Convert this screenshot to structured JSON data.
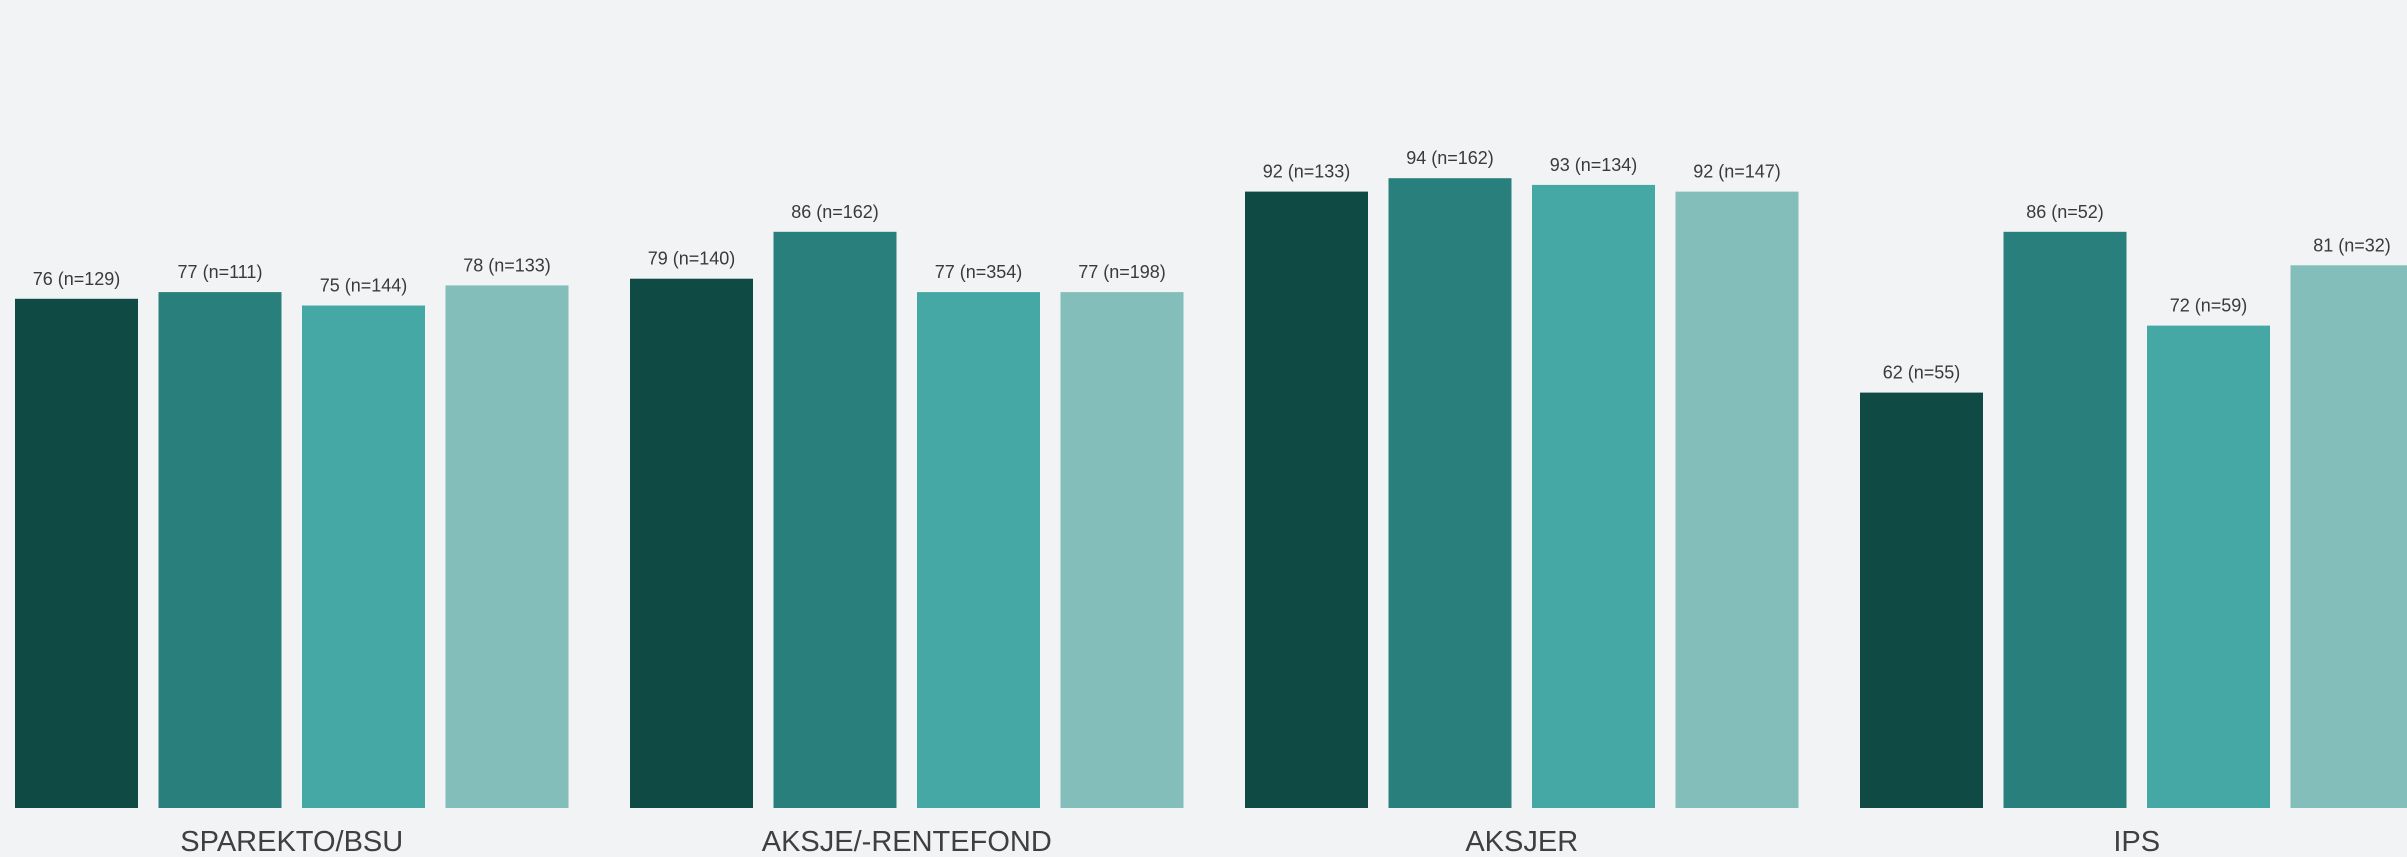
{
  "chart_data": {
    "type": "bar",
    "title": "",
    "xlabel": "",
    "ylabel": "",
    "ylim": [
      0,
      100
    ],
    "grid": false,
    "legend": "none",
    "categories": [
      "SPAREKTO/BSU",
      "AKSJE/-RENTEFOND",
      "AKSJER",
      "IPS"
    ],
    "series": [
      {
        "color": "#0f4a45",
        "values": [
          76,
          79,
          92,
          62
        ],
        "labels": [
          "76 (n=129)",
          "79 (n=140)",
          "92 (n=133)",
          "62 (n=55)"
        ]
      },
      {
        "color": "#287f7b",
        "values": [
          77,
          86,
          94,
          86
        ],
        "labels": [
          "77 (n=111)",
          "86 (n=162)",
          "94 (n=162)",
          "86 (n=52)"
        ]
      },
      {
        "color": "#45a8a4",
        "values": [
          75,
          77,
          93,
          72
        ],
        "labels": [
          "75 (n=144)",
          "77 (n=354)",
          "93 (n=134)",
          "72 (n=59)"
        ]
      },
      {
        "color": "#84bebb",
        "values": [
          78,
          77,
          92,
          81
        ],
        "labels": [
          "78 (n=133)",
          "77 (n=198)",
          "92 (n=147)",
          "81 (n=32)"
        ]
      }
    ]
  }
}
